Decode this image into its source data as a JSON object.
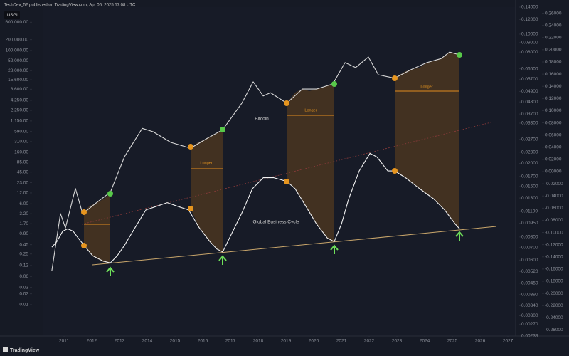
{
  "header": "TechDev_52 published on TradingView.com, Apr 06, 2025 17:08 UTC",
  "symbol": "USGI",
  "footer": "TradingView",
  "chart_data": {
    "type": "line",
    "annotations": [
      "Longer",
      "Longer",
      "Longer"
    ],
    "xlim": [
      2010.23,
      2027.28
    ],
    "xticks": [
      2011,
      2012,
      2013,
      2014,
      2015,
      2016,
      2017,
      2018,
      2019,
      2020,
      2021,
      2022,
      2023,
      2024,
      2025,
      2026,
      2027
    ],
    "log_scale": true,
    "grid": false,
    "ylim": [
      0.00137,
      1570000
    ],
    "yticks": [
      {
        "value": 600000,
        "label": "600,000.00"
      },
      {
        "value": 200000,
        "label": "200,000.00"
      },
      {
        "value": 100000,
        "label": "100,000.00"
      },
      {
        "value": 52000,
        "label": "52,000.00"
      },
      {
        "value": 28000,
        "label": "28,000.00"
      },
      {
        "value": 15600,
        "label": "15,600.00"
      },
      {
        "value": 8600,
        "label": "8,600.00"
      },
      {
        "value": 4250,
        "label": "4,250.00"
      },
      {
        "value": 2250,
        "label": "2,250.00"
      },
      {
        "value": 1150,
        "label": "1,150.00"
      },
      {
        "value": 590,
        "label": "590.00"
      },
      {
        "value": 310,
        "label": "310.00"
      },
      {
        "value": 160,
        "label": "160.00"
      },
      {
        "value": 85,
        "label": "85.00"
      },
      {
        "value": 45,
        "label": "45.00"
      },
      {
        "value": 23,
        "label": "23.00"
      },
      {
        "value": 12,
        "label": "12.00"
      },
      {
        "value": 6,
        "label": "6.00"
      },
      {
        "value": 3.2,
        "label": "3.20"
      },
      {
        "value": 1.7,
        "label": "1.70"
      },
      {
        "value": 0.9,
        "label": "0.90"
      },
      {
        "value": 0.45,
        "label": "0.45"
      },
      {
        "value": 0.25,
        "label": "0.25"
      },
      {
        "value": 0.12,
        "label": "0.12"
      },
      {
        "value": 0.06,
        "label": "0.06"
      },
      {
        "value": 0.03,
        "label": "0.03"
      },
      {
        "value": 0.02,
        "label": "0.02"
      },
      {
        "value": 0.01,
        "label": "0.01"
      }
    ],
    "y3lim": [
      0.00233,
      0.14
    ],
    "y3ticks": [
      {
        "value": 0.14,
        "label": "0.14000"
      },
      {
        "value": 0.12,
        "label": "0.12000"
      },
      {
        "value": 0.1,
        "label": "0.10000"
      },
      {
        "value": 0.09,
        "label": "0.09000"
      },
      {
        "value": 0.08,
        "label": "0.08000"
      },
      {
        "value": 0.065,
        "label": "0.06500"
      },
      {
        "value": 0.057,
        "label": "0.05700"
      },
      {
        "value": 0.049,
        "label": "0.04900"
      },
      {
        "value": 0.043,
        "label": "0.04300"
      },
      {
        "value": 0.037,
        "label": "0.03700"
      },
      {
        "value": 0.033,
        "label": "0.03300"
      },
      {
        "value": 0.027,
        "label": "0.02700"
      },
      {
        "value": 0.023,
        "label": "0.02300"
      },
      {
        "value": 0.02,
        "label": "0.02000"
      },
      {
        "value": 0.017,
        "label": "0.01700"
      },
      {
        "value": 0.015,
        "label": "0.01500"
      },
      {
        "value": 0.013,
        "label": "0.01300"
      },
      {
        "value": 0.011,
        "label": "0.01100"
      },
      {
        "value": 0.0095,
        "label": "0.00950"
      },
      {
        "value": 0.008,
        "label": "0.00800"
      },
      {
        "value": 0.007,
        "label": "0.00700"
      },
      {
        "value": 0.006,
        "label": "0.00600"
      },
      {
        "value": 0.0052,
        "label": "0.00520"
      },
      {
        "value": 0.0045,
        "label": "0.00450"
      },
      {
        "value": 0.0039,
        "label": "0.00390"
      },
      {
        "value": 0.0034,
        "label": "0.00340"
      },
      {
        "value": 0.003,
        "label": "0.00300"
      },
      {
        "value": 0.0027,
        "label": "0.00270"
      },
      {
        "value": 0.00233,
        "label": "0.00233"
      }
    ],
    "y2lim": [
      -0.27,
      0.27
    ],
    "y2ticks": [
      {
        "value": 0.26,
        "label": "0.26000"
      },
      {
        "value": 0.24,
        "label": "0.24000"
      },
      {
        "value": 0.22,
        "label": "0.22000"
      },
      {
        "value": 0.2,
        "label": "0.20000"
      },
      {
        "value": 0.18,
        "label": "0.18000"
      },
      {
        "value": 0.16,
        "label": "0.16000"
      },
      {
        "value": 0.14,
        "label": "0.14000"
      },
      {
        "value": 0.12,
        "label": "0.12000"
      },
      {
        "value": 0.1,
        "label": "0.10000"
      },
      {
        "value": 0.08,
        "label": "0.08000"
      },
      {
        "value": 0.06,
        "label": "0.06000"
      },
      {
        "value": 0.04,
        "label": "0.04000"
      },
      {
        "value": 0.02,
        "label": "0.02000"
      },
      {
        "value": 0,
        "label": "0.00000"
      },
      {
        "value": -0.02,
        "label": "-0.02000"
      },
      {
        "value": -0.04,
        "label": "-0.04000"
      },
      {
        "value": -0.06,
        "label": "-0.06000"
      },
      {
        "value": -0.08,
        "label": "-0.08000"
      },
      {
        "value": -0.1,
        "label": "-0.10000"
      },
      {
        "value": -0.12,
        "label": "-0.12000"
      },
      {
        "value": -0.14,
        "label": "-0.14000"
      },
      {
        "value": -0.16,
        "label": "-0.16000"
      },
      {
        "value": -0.18,
        "label": "-0.18000"
      },
      {
        "value": -0.2,
        "label": "-0.20000"
      },
      {
        "value": -0.22,
        "label": "-0.22000"
      },
      {
        "value": -0.24,
        "label": "-0.24000"
      },
      {
        "value": -0.26,
        "label": "-0.26000"
      }
    ],
    "series": [
      {
        "name": "Bitcoin",
        "color": "#d9d9d9",
        "x": [
          2010.56,
          2010.87,
          2011.05,
          2011.41,
          2011.67,
          2012.15,
          2012.67,
          2013.18,
          2013.82,
          2014.21,
          2014.85,
          2015.56,
          2016.13,
          2016.72,
          2017.41,
          2017.82,
          2018.18,
          2018.44,
          2019.03,
          2019.59,
          2020.1,
          2020.69,
          2021.13,
          2021.51,
          2021.97,
          2022.33,
          2022.92,
          2023.51,
          2024.08,
          2024.59,
          2024.9,
          2025.26
        ],
        "values": [
          0.087,
          3.24,
          1.3,
          16,
          3.2,
          6.3,
          12.6,
          120,
          720,
          580,
          295,
          205,
          370,
          660,
          3550,
          13800,
          5600,
          6900,
          3550,
          8700,
          8700,
          12000,
          46700,
          34000,
          66500,
          21500,
          17300,
          29800,
          46700,
          60000,
          91000,
          76000
        ]
      },
      {
        "name": "Global Business Cycle",
        "color": "#f2f2f2",
        "axis": "y2",
        "x": [
          2010.56,
          2010.74,
          2010.95,
          2011.13,
          2011.33,
          2011.51,
          2011.72,
          2012.03,
          2012.41,
          2012.67,
          2012.92,
          2013.18,
          2013.56,
          2013.95,
          2014.33,
          2014.72,
          2015.1,
          2015.49,
          2015.87,
          2016.26,
          2016.51,
          2016.72,
          2017.03,
          2017.41,
          2017.79,
          2018.18,
          2018.56,
          2019.03,
          2019.33,
          2019.72,
          2020.1,
          2020.49,
          2020.74,
          2021.0,
          2021.26,
          2021.64,
          2022.03,
          2022.28,
          2022.67,
          2022.92,
          2023.31,
          2023.82,
          2024.33,
          2024.72,
          2025.1,
          2025.26
        ],
        "values": [
          -0.124,
          -0.115,
          -0.098,
          -0.094,
          -0.098,
          -0.109,
          -0.121,
          -0.138,
          -0.147,
          -0.15,
          -0.138,
          -0.121,
          -0.092,
          -0.063,
          -0.057,
          -0.051,
          -0.057,
          -0.063,
          -0.092,
          -0.115,
          -0.127,
          -0.132,
          -0.103,
          -0.068,
          -0.028,
          -0.01,
          -0.01,
          -0.016,
          -0.028,
          -0.057,
          -0.086,
          -0.109,
          -0.115,
          -0.086,
          -0.045,
          0.001,
          0.03,
          0.024,
          0.001,
          0.001,
          -0.01,
          -0.028,
          -0.045,
          -0.063,
          -0.086,
          -0.094
        ]
      }
    ]
  }
}
